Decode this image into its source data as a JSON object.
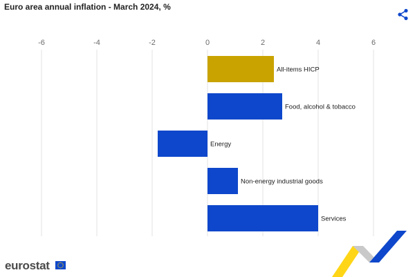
{
  "header": {
    "title": "Euro area annual inflation - March  2024, %",
    "share_icon": "share-icon"
  },
  "chart_data": {
    "type": "bar",
    "orientation": "horizontal",
    "title": "Euro area annual inflation - March  2024, %",
    "xlabel": "",
    "ylabel": "",
    "xlim": [
      -6,
      6
    ],
    "xticks": [
      -6,
      -4,
      -2,
      0,
      2,
      4,
      6
    ],
    "grid": true,
    "legend": "none",
    "categories": [
      "All-items HICP",
      "Food, alcohol & tobacco",
      "Energy",
      "Non-energy industrial goods",
      "Services"
    ],
    "values": [
      2.4,
      2.7,
      -1.8,
      1.1,
      4.0
    ],
    "colors": [
      "#c9a300",
      "#0e47cb",
      "#0e47cb",
      "#0e47cb",
      "#0e47cb"
    ]
  },
  "footer": {
    "logo_text": "eurostat",
    "flag_icon": "eu-flag-icon",
    "decoration": "swoosh-graphic"
  }
}
